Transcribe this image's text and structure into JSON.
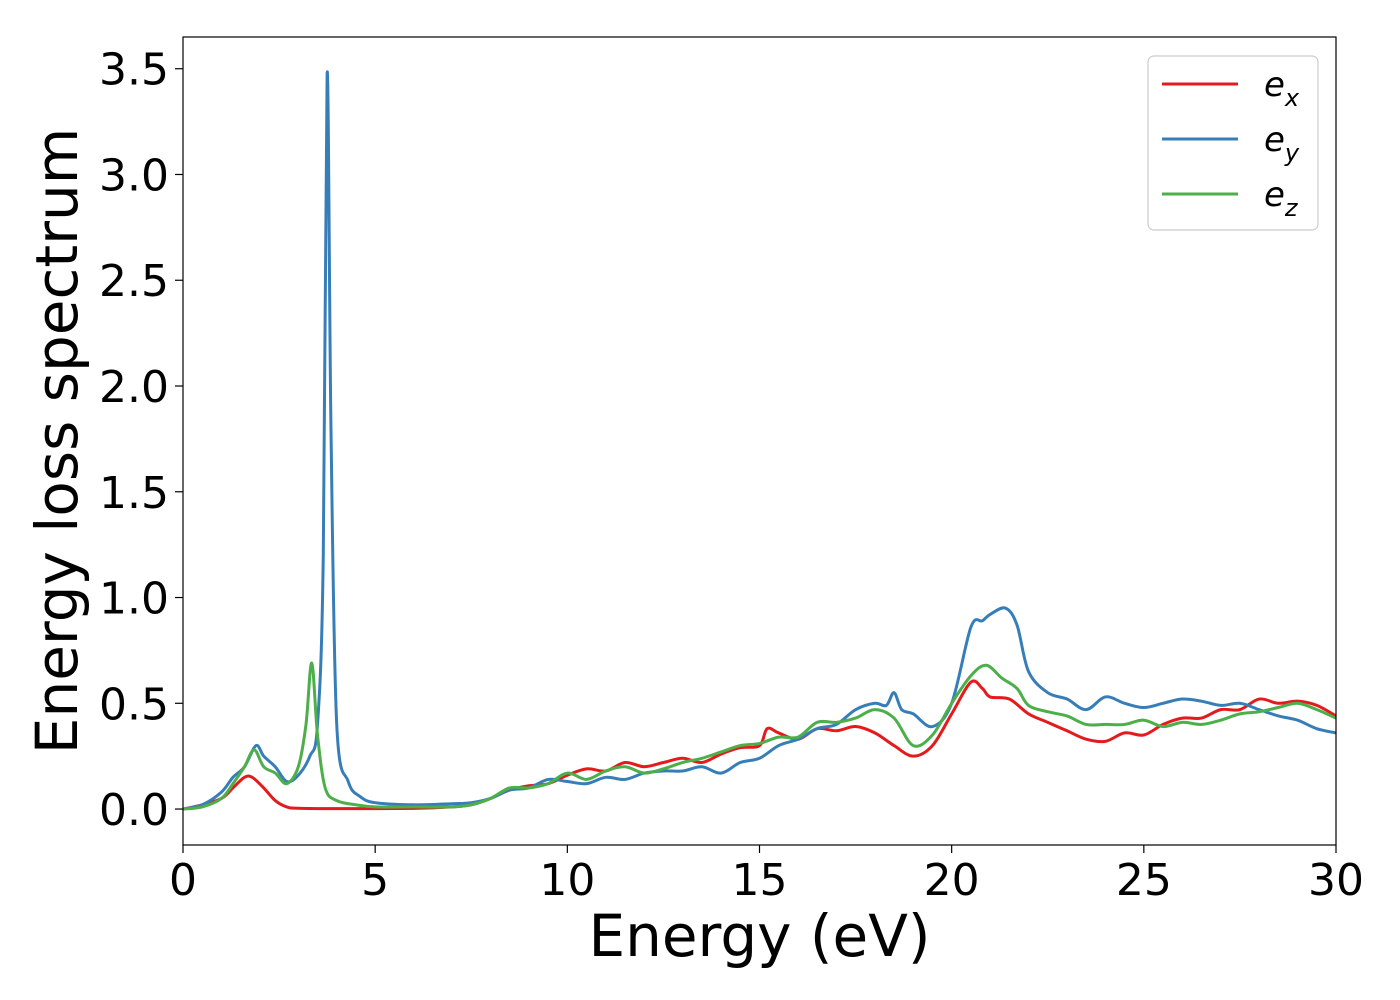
{
  "chart_data": {
    "type": "line",
    "xlabel": "Energy (eV)",
    "ylabel": "Energy loss spectrum",
    "xlim": [
      0,
      30
    ],
    "ylim": [
      -0.17,
      3.65
    ],
    "xticks": [
      0,
      5,
      10,
      15,
      20,
      25,
      30
    ],
    "xtick_labels": [
      "0",
      "5",
      "10",
      "15",
      "20",
      "25",
      "30"
    ],
    "yticks": [
      0.0,
      0.5,
      1.0,
      1.5,
      2.0,
      2.5,
      3.0,
      3.5
    ],
    "ytick_labels": [
      "0.0",
      "0.5",
      "1.0",
      "1.5",
      "2.0",
      "2.5",
      "3.0",
      "3.5"
    ],
    "grid": false,
    "legend_position": "top-right",
    "series": [
      {
        "name": "e_x",
        "label_base": "e",
        "label_sub": "x",
        "color": "#e41a1c",
        "points": [
          [
            0,
            0
          ],
          [
            0.5,
            0.02
          ],
          [
            1.0,
            0.05
          ],
          [
            1.3,
            0.1
          ],
          [
            1.6,
            0.15
          ],
          [
            1.8,
            0.15
          ],
          [
            2.1,
            0.1
          ],
          [
            2.4,
            0.04
          ],
          [
            2.7,
            0.01
          ],
          [
            3.0,
            0.004
          ],
          [
            4.0,
            0.002
          ],
          [
            6.0,
            0.003
          ],
          [
            7.0,
            0.01
          ],
          [
            7.5,
            0.02
          ],
          [
            8.0,
            0.05
          ],
          [
            8.5,
            0.09
          ],
          [
            9.0,
            0.11
          ],
          [
            9.5,
            0.12
          ],
          [
            10.0,
            0.16
          ],
          [
            10.5,
            0.19
          ],
          [
            11.0,
            0.18
          ],
          [
            11.5,
            0.22
          ],
          [
            12.0,
            0.2
          ],
          [
            12.5,
            0.22
          ],
          [
            13.0,
            0.24
          ],
          [
            13.5,
            0.22
          ],
          [
            14.0,
            0.26
          ],
          [
            14.5,
            0.29
          ],
          [
            15.0,
            0.3
          ],
          [
            15.2,
            0.38
          ],
          [
            15.5,
            0.36
          ],
          [
            16.0,
            0.33
          ],
          [
            16.5,
            0.38
          ],
          [
            17.0,
            0.37
          ],
          [
            17.5,
            0.39
          ],
          [
            18.0,
            0.36
          ],
          [
            18.5,
            0.3
          ],
          [
            19.0,
            0.25
          ],
          [
            19.5,
            0.3
          ],
          [
            20.0,
            0.45
          ],
          [
            20.5,
            0.6
          ],
          [
            20.8,
            0.57
          ],
          [
            21.0,
            0.53
          ],
          [
            21.5,
            0.52
          ],
          [
            22.0,
            0.45
          ],
          [
            22.5,
            0.41
          ],
          [
            23.0,
            0.37
          ],
          [
            23.5,
            0.33
          ],
          [
            24.0,
            0.32
          ],
          [
            24.5,
            0.36
          ],
          [
            25.0,
            0.35
          ],
          [
            25.5,
            0.4
          ],
          [
            26.0,
            0.43
          ],
          [
            26.5,
            0.43
          ],
          [
            27.0,
            0.47
          ],
          [
            27.5,
            0.47
          ],
          [
            28.0,
            0.52
          ],
          [
            28.5,
            0.5
          ],
          [
            29.0,
            0.51
          ],
          [
            29.5,
            0.49
          ],
          [
            30.0,
            0.44
          ]
        ]
      },
      {
        "name": "e_y",
        "label_base": "e",
        "label_sub": "y",
        "color": "#377eb8",
        "points": [
          [
            0,
            0
          ],
          [
            0.5,
            0.02
          ],
          [
            1.0,
            0.08
          ],
          [
            1.3,
            0.15
          ],
          [
            1.6,
            0.2
          ],
          [
            1.9,
            0.3
          ],
          [
            2.1,
            0.25
          ],
          [
            2.4,
            0.2
          ],
          [
            2.7,
            0.13
          ],
          [
            3.0,
            0.16
          ],
          [
            3.3,
            0.25
          ],
          [
            3.5,
            0.4
          ],
          [
            3.65,
            1.2
          ],
          [
            3.75,
            3.48
          ],
          [
            3.85,
            1.8
          ],
          [
            4.0,
            0.4
          ],
          [
            4.3,
            0.13
          ],
          [
            4.6,
            0.06
          ],
          [
            5.0,
            0.03
          ],
          [
            6.0,
            0.02
          ],
          [
            7.0,
            0.025
          ],
          [
            7.5,
            0.03
          ],
          [
            8.0,
            0.05
          ],
          [
            8.5,
            0.09
          ],
          [
            9.0,
            0.1
          ],
          [
            9.5,
            0.14
          ],
          [
            10.0,
            0.13
          ],
          [
            10.5,
            0.12
          ],
          [
            11.0,
            0.15
          ],
          [
            11.5,
            0.14
          ],
          [
            12.0,
            0.17
          ],
          [
            12.5,
            0.18
          ],
          [
            13.0,
            0.18
          ],
          [
            13.5,
            0.2
          ],
          [
            14.0,
            0.17
          ],
          [
            14.5,
            0.22
          ],
          [
            15.0,
            0.24
          ],
          [
            15.5,
            0.3
          ],
          [
            16.0,
            0.33
          ],
          [
            16.5,
            0.38
          ],
          [
            17.0,
            0.4
          ],
          [
            17.5,
            0.47
          ],
          [
            18.0,
            0.5
          ],
          [
            18.3,
            0.49
          ],
          [
            18.5,
            0.55
          ],
          [
            18.7,
            0.47
          ],
          [
            19.0,
            0.45
          ],
          [
            19.5,
            0.39
          ],
          [
            20.0,
            0.5
          ],
          [
            20.5,
            0.86
          ],
          [
            20.8,
            0.89
          ],
          [
            21.0,
            0.92
          ],
          [
            21.4,
            0.95
          ],
          [
            21.7,
            0.87
          ],
          [
            22.0,
            0.65
          ],
          [
            22.5,
            0.55
          ],
          [
            23.0,
            0.52
          ],
          [
            23.5,
            0.47
          ],
          [
            24.0,
            0.53
          ],
          [
            24.5,
            0.5
          ],
          [
            25.0,
            0.48
          ],
          [
            25.5,
            0.5
          ],
          [
            26.0,
            0.52
          ],
          [
            26.5,
            0.51
          ],
          [
            27.0,
            0.49
          ],
          [
            27.5,
            0.5
          ],
          [
            28.0,
            0.47
          ],
          [
            28.5,
            0.44
          ],
          [
            29.0,
            0.42
          ],
          [
            29.5,
            0.38
          ],
          [
            30.0,
            0.36
          ]
        ]
      },
      {
        "name": "e_z",
        "label_base": "e",
        "label_sub": "z",
        "color": "#4daf4a",
        "points": [
          [
            0,
            0
          ],
          [
            0.5,
            0.01
          ],
          [
            1.0,
            0.05
          ],
          [
            1.3,
            0.12
          ],
          [
            1.6,
            0.2
          ],
          [
            1.85,
            0.28
          ],
          [
            2.1,
            0.2
          ],
          [
            2.4,
            0.17
          ],
          [
            2.7,
            0.12
          ],
          [
            3.0,
            0.2
          ],
          [
            3.2,
            0.4
          ],
          [
            3.35,
            0.69
          ],
          [
            3.5,
            0.35
          ],
          [
            3.7,
            0.1
          ],
          [
            4.0,
            0.04
          ],
          [
            4.5,
            0.02
          ],
          [
            5.0,
            0.01
          ],
          [
            6.0,
            0.01
          ],
          [
            7.0,
            0.01
          ],
          [
            7.5,
            0.02
          ],
          [
            8.0,
            0.05
          ],
          [
            8.5,
            0.1
          ],
          [
            9.0,
            0.1
          ],
          [
            9.5,
            0.12
          ],
          [
            10.0,
            0.17
          ],
          [
            10.5,
            0.14
          ],
          [
            11.0,
            0.18
          ],
          [
            11.5,
            0.2
          ],
          [
            12.0,
            0.17
          ],
          [
            12.5,
            0.19
          ],
          [
            13.0,
            0.22
          ],
          [
            13.5,
            0.24
          ],
          [
            14.0,
            0.27
          ],
          [
            14.5,
            0.3
          ],
          [
            15.0,
            0.31
          ],
          [
            15.5,
            0.34
          ],
          [
            16.0,
            0.34
          ],
          [
            16.5,
            0.41
          ],
          [
            17.0,
            0.41
          ],
          [
            17.5,
            0.43
          ],
          [
            18.0,
            0.47
          ],
          [
            18.5,
            0.43
          ],
          [
            19.0,
            0.3
          ],
          [
            19.5,
            0.35
          ],
          [
            20.0,
            0.5
          ],
          [
            20.5,
            0.63
          ],
          [
            20.9,
            0.68
          ],
          [
            21.3,
            0.62
          ],
          [
            21.7,
            0.57
          ],
          [
            22.0,
            0.49
          ],
          [
            22.5,
            0.46
          ],
          [
            23.0,
            0.44
          ],
          [
            23.5,
            0.4
          ],
          [
            24.0,
            0.4
          ],
          [
            24.5,
            0.4
          ],
          [
            25.0,
            0.42
          ],
          [
            25.5,
            0.39
          ],
          [
            26.0,
            0.41
          ],
          [
            26.5,
            0.4
          ],
          [
            27.0,
            0.42
          ],
          [
            27.5,
            0.45
          ],
          [
            28.0,
            0.46
          ],
          [
            28.5,
            0.48
          ],
          [
            29.0,
            0.5
          ],
          [
            29.5,
            0.47
          ],
          [
            30.0,
            0.43
          ]
        ]
      }
    ]
  }
}
